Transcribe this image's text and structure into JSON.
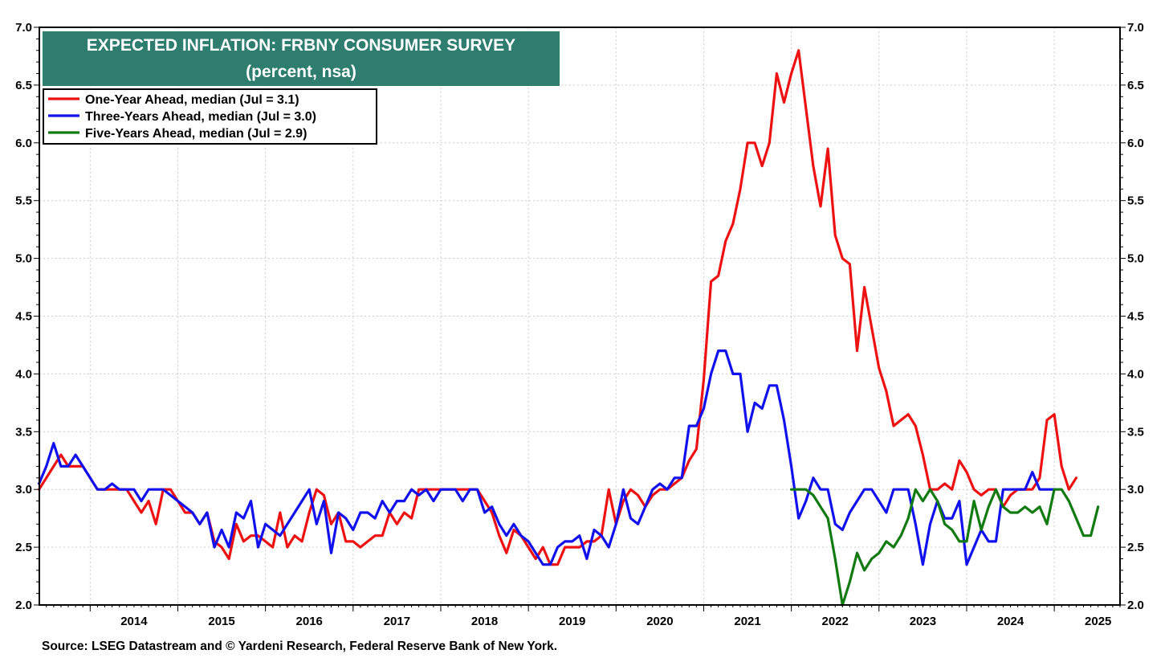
{
  "chart_data": {
    "type": "line",
    "title": "EXPECTED INFLATION: FRBNY CONSUMER SURVEY",
    "subtitle": "(percent, nsa)",
    "ylim": [
      2.0,
      7.0
    ],
    "y_ticks": [
      "7.0",
      "6.5",
      "6.0",
      "5.5",
      "5.0",
      "4.5",
      "4.0",
      "3.5",
      "3.0",
      "2.5",
      "2.0"
    ],
    "x_range": [
      2013.42,
      2025.75
    ],
    "x_labels": [
      {
        "label": "2014",
        "year": 2014
      },
      {
        "label": "2015",
        "year": 2015
      },
      {
        "label": "2016",
        "year": 2016
      },
      {
        "label": "2017",
        "year": 2017
      },
      {
        "label": "2018",
        "year": 2018
      },
      {
        "label": "2019",
        "year": 2019
      },
      {
        "label": "2020",
        "year": 2020
      },
      {
        "label": "2021",
        "year": 2021
      },
      {
        "label": "2022",
        "year": 2022
      },
      {
        "label": "2023",
        "year": 2023
      },
      {
        "label": "2024",
        "year": 2024
      },
      {
        "label": "2025",
        "year": 2025
      }
    ],
    "grid": true,
    "legend_position": "top-left",
    "series": [
      {
        "name": "One-Year Ahead, median  (Jul = 3.1)",
        "color": "#ee1111",
        "start": [
          2013,
          6
        ],
        "values": [
          3.0,
          3.1,
          3.2,
          3.3,
          3.2,
          3.2,
          3.2,
          3.1,
          3.0,
          3.0,
          3.0,
          3.0,
          3.0,
          2.9,
          2.8,
          2.9,
          2.7,
          3.0,
          3.0,
          2.9,
          2.8,
          2.8,
          2.7,
          2.8,
          2.55,
          2.5,
          2.4,
          2.7,
          2.55,
          2.6,
          2.6,
          2.55,
          2.5,
          2.8,
          2.5,
          2.6,
          2.55,
          2.8,
          3.0,
          2.95,
          2.7,
          2.8,
          2.55,
          2.55,
          2.5,
          2.55,
          2.6,
          2.6,
          2.8,
          2.7,
          2.8,
          2.75,
          3.0,
          3.0,
          3.0,
          3.0,
          3.0,
          3.0,
          3.0,
          3.0,
          3.0,
          2.9,
          2.8,
          2.6,
          2.45,
          2.65,
          2.6,
          2.5,
          2.4,
          2.5,
          2.35,
          2.35,
          2.5,
          2.5,
          2.5,
          2.55,
          2.55,
          2.6,
          3.0,
          2.7,
          2.9,
          3.0,
          2.95,
          2.85,
          2.95,
          3.0,
          3.0,
          3.05,
          3.1,
          3.25,
          3.35,
          3.95,
          4.8,
          4.85,
          5.15,
          5.3,
          5.6,
          6.0,
          6.0,
          5.8,
          6.0,
          6.6,
          6.35,
          6.6,
          6.8,
          6.3,
          5.8,
          5.45,
          5.95,
          5.2,
          5.0,
          4.95,
          4.2,
          4.75,
          4.4,
          4.05,
          3.85,
          3.55,
          3.6,
          3.65,
          3.55,
          3.3,
          3.0,
          3.0,
          3.05,
          3.0,
          3.25,
          3.15,
          3.0,
          2.95,
          3.0,
          3.0,
          2.85,
          2.95,
          3.0,
          3.0,
          3.0,
          3.1,
          3.6,
          3.65,
          3.2,
          3.0,
          3.1
        ]
      },
      {
        "name": "Three-Years Ahead, median  (Jul = 3.0)",
        "color": "#1111ee",
        "start": [
          2013,
          6
        ],
        "values": [
          3.05,
          3.2,
          3.4,
          3.2,
          3.2,
          3.3,
          3.2,
          3.1,
          3.0,
          3.0,
          3.05,
          3.0,
          3.0,
          3.0,
          2.9,
          3.0,
          3.0,
          3.0,
          2.95,
          2.9,
          2.85,
          2.8,
          2.7,
          2.8,
          2.5,
          2.65,
          2.5,
          2.8,
          2.75,
          2.9,
          2.5,
          2.7,
          2.65,
          2.6,
          2.7,
          2.8,
          2.9,
          3.0,
          2.7,
          2.9,
          2.45,
          2.8,
          2.75,
          2.65,
          2.8,
          2.8,
          2.75,
          2.9,
          2.8,
          2.9,
          2.9,
          3.0,
          2.95,
          3.0,
          2.9,
          3.0,
          3.0,
          3.0,
          2.9,
          3.0,
          3.0,
          2.8,
          2.85,
          2.7,
          2.6,
          2.7,
          2.6,
          2.55,
          2.45,
          2.35,
          2.35,
          2.5,
          2.55,
          2.55,
          2.6,
          2.4,
          2.65,
          2.6,
          2.5,
          2.7,
          3.0,
          2.75,
          2.7,
          2.85,
          3.0,
          3.05,
          3.0,
          3.1,
          3.1,
          3.55,
          3.55,
          3.7,
          4.0,
          4.2,
          4.2,
          4.0,
          4.0,
          3.5,
          3.75,
          3.7,
          3.9,
          3.9,
          3.6,
          3.2,
          2.75,
          2.9,
          3.1,
          3.0,
          3.0,
          2.7,
          2.65,
          2.8,
          2.9,
          3.0,
          3.0,
          2.9,
          2.8,
          3.0,
          3.0,
          3.0,
          2.7,
          2.35,
          2.7,
          2.9,
          2.75,
          2.75,
          2.9,
          2.35,
          2.5,
          2.65,
          2.55,
          2.55,
          3.0,
          3.0,
          3.0,
          3.0,
          3.15,
          3.0,
          3.0,
          3.0
        ]
      },
      {
        "name": "Five-Years Ahead, median (Jul = 2.9)",
        "color": "#117a11",
        "start": [
          2022,
          1
        ],
        "values": [
          3.0,
          3.0,
          3.0,
          2.95,
          2.85,
          2.75,
          2.4,
          2.0,
          2.2,
          2.45,
          2.3,
          2.4,
          2.45,
          2.55,
          2.5,
          2.6,
          2.75,
          3.0,
          2.9,
          3.0,
          2.9,
          2.7,
          2.65,
          2.55,
          2.55,
          2.9,
          2.65,
          2.85,
          3.0,
          2.85,
          2.8,
          2.8,
          2.85,
          2.8,
          2.85,
          2.7,
          3.0,
          3.0,
          2.9,
          2.75,
          2.6,
          2.6,
          2.85
        ]
      }
    ],
    "legend_entries": [
      {
        "label": "One-Year Ahead, median  (Jul = 3.1)",
        "color": "#ee1111"
      },
      {
        "label": "Three-Years Ahead, median  (Jul = 3.0)",
        "color": "#1111ee"
      },
      {
        "label": "Five-Years Ahead, median (Jul = 2.9)",
        "color": "#117a11"
      }
    ],
    "source": "Source: LSEG Datastream and © Yardeni Research, Federal Reserve Bank of New York.",
    "title_box_color": "#2e7d6f"
  }
}
